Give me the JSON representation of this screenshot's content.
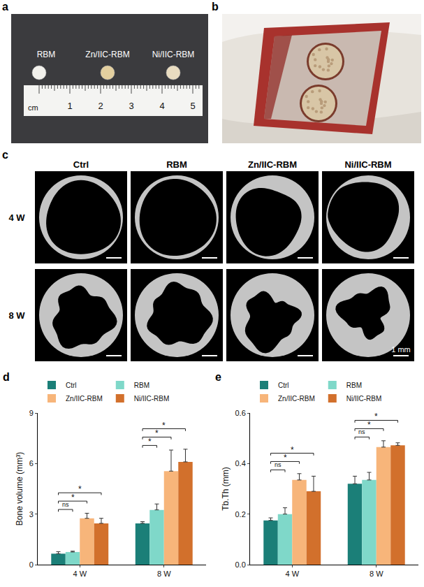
{
  "panel_letters": [
    "a",
    "b",
    "c",
    "d",
    "e"
  ],
  "panel_a": {
    "samples": [
      "RBM",
      "Zn/IIC-RBM",
      "Ni/IIC-RBM"
    ],
    "ruler": {
      "unit": "cm",
      "marks": [
        1,
        2,
        3,
        4,
        5
      ]
    }
  },
  "panel_c": {
    "columns": [
      "Ctrl",
      "RBM",
      "Zn/IIC-RBM",
      "Ni/IIC-RBM"
    ],
    "rows": [
      "4 W",
      "8 W"
    ],
    "scale_bar": "1 mm"
  },
  "chart_data": [
    {
      "type": "bar",
      "y_label": "Bone volume (mm³)",
      "categories": [
        "4 W",
        "8 W"
      ],
      "series": [
        {
          "name": "Ctrl",
          "color": "#1b7f78",
          "values": [
            0.65,
            2.45
          ],
          "errors": [
            0.12,
            0.1
          ]
        },
        {
          "name": "RBM",
          "color": "#7fd8c9",
          "values": [
            0.75,
            3.25
          ],
          "errors": [
            0.05,
            0.35
          ]
        },
        {
          "name": "Zn/IIC-RBM",
          "color": "#f7b57a",
          "values": [
            2.75,
            5.55
          ],
          "errors": [
            0.3,
            1.25
          ]
        },
        {
          "name": "Ni/IIC-RBM",
          "color": "#d2702c",
          "values": [
            2.45,
            6.1
          ],
          "errors": [
            0.3,
            0.75
          ]
        }
      ],
      "ylim": [
        0,
        9
      ],
      "yticks": [
        0,
        3,
        6,
        9
      ],
      "grid": false,
      "legend": "top",
      "annotations": [
        {
          "category": "4 W",
          "from": "Ctrl",
          "to": "RBM",
          "text": "ns"
        },
        {
          "category": "4 W",
          "from": "Ctrl",
          "to": "Zn/IIC-RBM",
          "text": "*"
        },
        {
          "category": "4 W",
          "from": "Ctrl",
          "to": "Ni/IIC-RBM",
          "text": "*"
        },
        {
          "category": "8 W",
          "from": "Ctrl",
          "to": "RBM",
          "text": "*"
        },
        {
          "category": "8 W",
          "from": "Ctrl",
          "to": "Zn/IIC-RBM",
          "text": "*"
        },
        {
          "category": "8 W",
          "from": "Ctrl",
          "to": "Ni/IIC-RBM",
          "text": "*"
        }
      ]
    },
    {
      "type": "bar",
      "y_label": "Tb.Th (mm)",
      "categories": [
        "4 W",
        "8 W"
      ],
      "series": [
        {
          "name": "Ctrl",
          "color": "#1b7f78",
          "values": [
            0.175,
            0.32
          ],
          "errors": [
            0.01,
            0.03
          ]
        },
        {
          "name": "RBM",
          "color": "#7fd8c9",
          "values": [
            0.2,
            0.335
          ],
          "errors": [
            0.025,
            0.03
          ]
        },
        {
          "name": "Zn/IIC-RBM",
          "color": "#f7b57a",
          "values": [
            0.335,
            0.465
          ],
          "errors": [
            0.025,
            0.025
          ]
        },
        {
          "name": "Ni/IIC-RBM",
          "color": "#d2702c",
          "values": [
            0.29,
            0.472
          ],
          "errors": [
            0.06,
            0.01
          ]
        }
      ],
      "ylim": [
        0,
        0.6
      ],
      "yticks": [
        {
          "value": 0,
          "label": "0.0"
        },
        {
          "value": 0.2,
          "label": "0.2"
        },
        {
          "value": 0.4,
          "label": "0.4"
        },
        {
          "value": 0.6,
          "label": "0.6"
        }
      ],
      "grid": false,
      "legend": "top",
      "annotations": [
        {
          "category": "4 W",
          "from": "Ctrl",
          "to": "RBM",
          "text": "ns"
        },
        {
          "category": "4 W",
          "from": "Ctrl",
          "to": "Zn/IIC-RBM",
          "text": "*"
        },
        {
          "category": "4 W",
          "from": "Ctrl",
          "to": "Ni/IIC-RBM",
          "text": "*"
        },
        {
          "category": "8 W",
          "from": "Ctrl",
          "to": "RBM",
          "text": "ns"
        },
        {
          "category": "8 W",
          "from": "Ctrl",
          "to": "Zn/IIC-RBM",
          "text": "*"
        },
        {
          "category": "8 W",
          "from": "Ctrl",
          "to": "Ni/IIC-RBM",
          "text": "*"
        }
      ]
    }
  ]
}
